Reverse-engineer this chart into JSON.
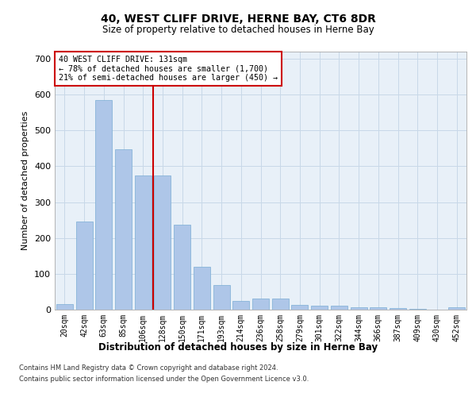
{
  "title": "40, WEST CLIFF DRIVE, HERNE BAY, CT6 8DR",
  "subtitle": "Size of property relative to detached houses in Herne Bay",
  "xlabel": "Distribution of detached houses by size in Herne Bay",
  "ylabel": "Number of detached properties",
  "categories": [
    "20sqm",
    "42sqm",
    "63sqm",
    "85sqm",
    "106sqm",
    "128sqm",
    "150sqm",
    "171sqm",
    "193sqm",
    "214sqm",
    "236sqm",
    "258sqm",
    "279sqm",
    "301sqm",
    "322sqm",
    "344sqm",
    "366sqm",
    "387sqm",
    "409sqm",
    "430sqm",
    "452sqm"
  ],
  "values": [
    15,
    247,
    585,
    447,
    375,
    375,
    237,
    120,
    68,
    24,
    30,
    30,
    13,
    10,
    10,
    7,
    7,
    5,
    3,
    0,
    6
  ],
  "bar_color": "#aec6e8",
  "bar_edge_color": "#7aadd4",
  "reference_line_color": "#cc0000",
  "annotation_text_line1": "40 WEST CLIFF DRIVE: 131sqm",
  "annotation_text_line2": "← 78% of detached houses are smaller (1,700)",
  "annotation_text_line3": "21% of semi-detached houses are larger (450) →",
  "annotation_box_color": "#cc0000",
  "ylim": [
    0,
    720
  ],
  "yticks": [
    0,
    100,
    200,
    300,
    400,
    500,
    600,
    700
  ],
  "grid_color": "#c8d8e8",
  "bg_color": "#e8f0f8",
  "footer_line1": "Contains HM Land Registry data © Crown copyright and database right 2024.",
  "footer_line2": "Contains public sector information licensed under the Open Government Licence v3.0."
}
